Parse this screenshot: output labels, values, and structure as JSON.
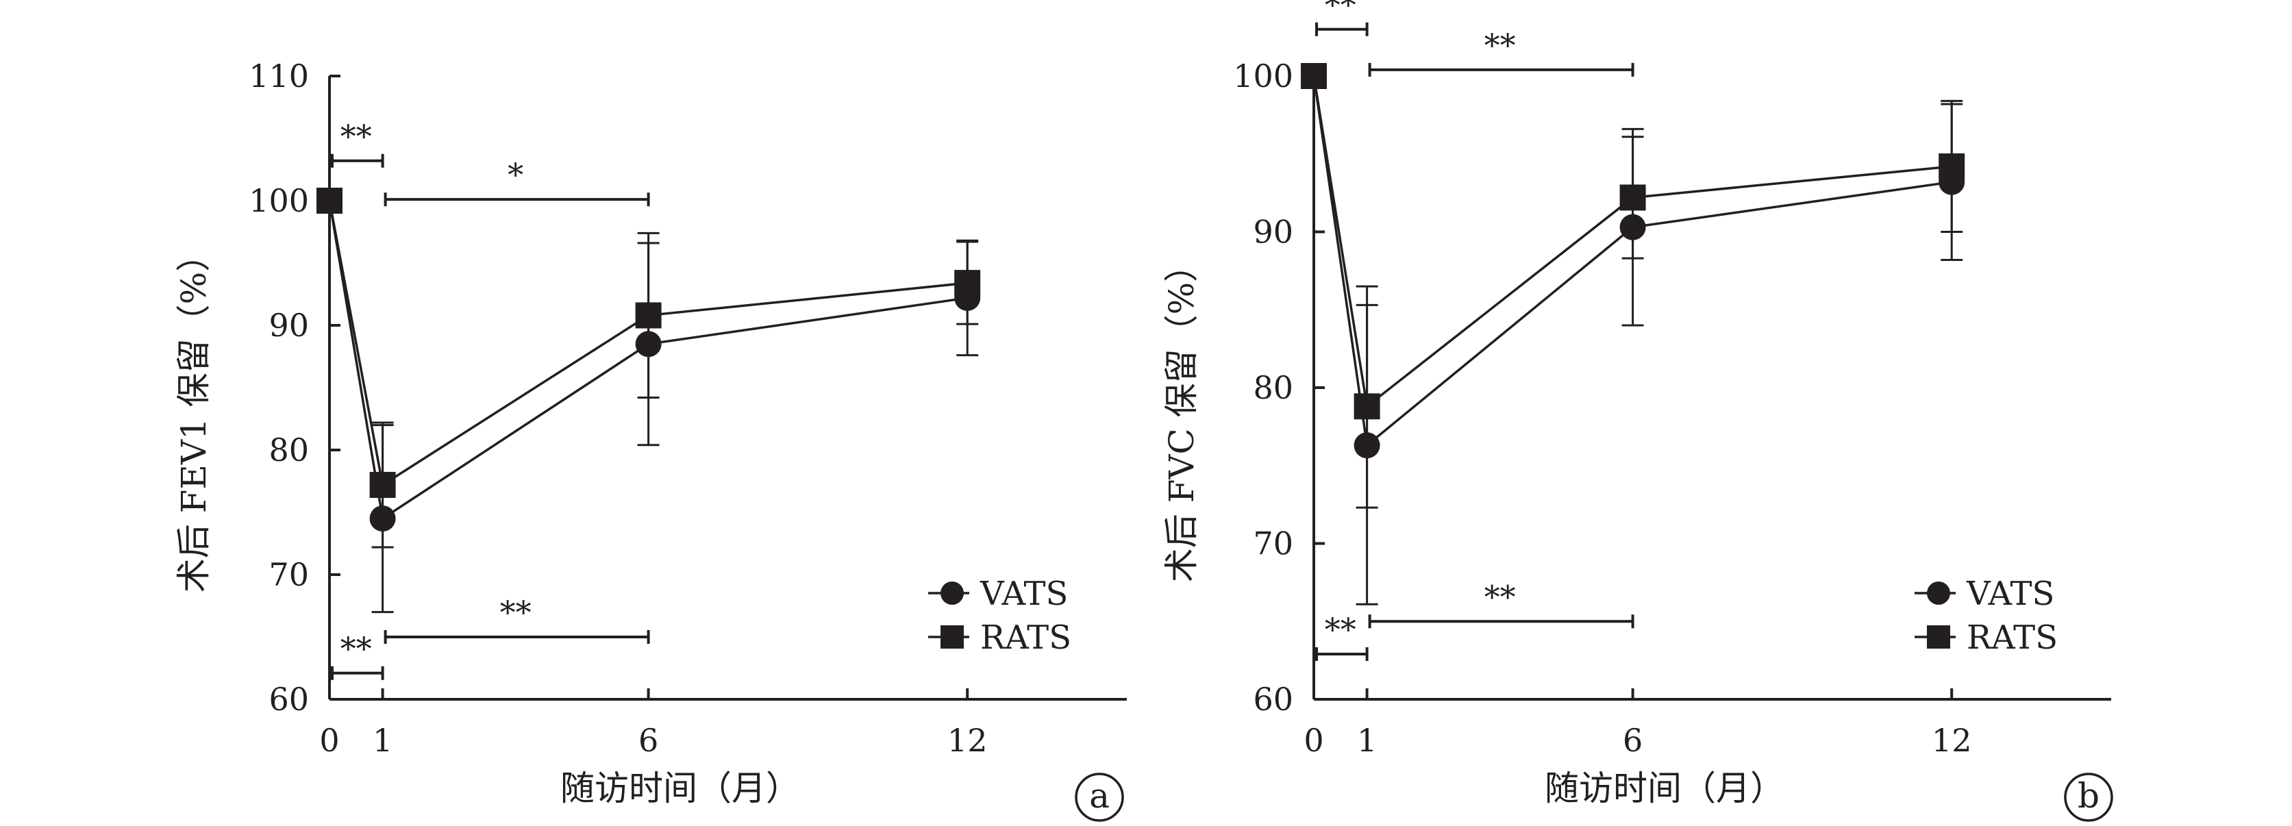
{
  "chart_data": [
    {
      "type": "line",
      "panel_label": "a",
      "ylabel": "术后 FEV1 保留（%）",
      "xlabel": "随访时间（月）",
      "ylim": [
        60,
        110
      ],
      "yticks": [
        60,
        70,
        80,
        90,
        100,
        110
      ],
      "xlim": [
        0,
        15
      ],
      "xticks": [
        0,
        1,
        6,
        12
      ],
      "grid": false,
      "legend_position": "bottom-right",
      "legend": [
        "VATS",
        "RATS"
      ],
      "series": [
        {
          "name": "VATS",
          "marker": "circle",
          "x": [
            0,
            1,
            6,
            12
          ],
          "y": [
            100,
            74.5,
            88.5,
            92.2
          ],
          "err": [
            0,
            7.5,
            8.1,
            4.6
          ]
        },
        {
          "name": "RATS",
          "marker": "square",
          "x": [
            0,
            1,
            6,
            12
          ],
          "y": [
            100,
            77.2,
            90.8,
            93.4
          ],
          "err": [
            0,
            5.0,
            6.6,
            3.3
          ]
        }
      ],
      "significance": [
        {
          "label": "**",
          "x1": 0,
          "x2": 1,
          "y": 103.2
        },
        {
          "label": "*",
          "x1": 1,
          "x2": 6,
          "y": 100.1
        },
        {
          "label": "**",
          "x1": 1,
          "x2": 6,
          "y": 65.0
        },
        {
          "label": "**",
          "x1": 0,
          "x2": 1,
          "y": 62.1
        }
      ]
    },
    {
      "type": "line",
      "panel_label": "b",
      "ylabel": "术后 FVC 保留（%）",
      "xlabel": "随访时间（月）",
      "ylim": [
        60,
        100
      ],
      "yticks": [
        60,
        70,
        80,
        90,
        100
      ],
      "xlim": [
        0,
        15
      ],
      "xticks": [
        0,
        1,
        6,
        12
      ],
      "grid": false,
      "legend_position": "bottom-right",
      "legend": [
        "VATS",
        "RATS"
      ],
      "series": [
        {
          "name": "VATS",
          "marker": "circle",
          "x": [
            0,
            1,
            6,
            12
          ],
          "y": [
            100,
            76.3,
            90.3,
            93.2
          ],
          "err": [
            0,
            10.2,
            6.3,
            5.0
          ]
        },
        {
          "name": "RATS",
          "marker": "square",
          "x": [
            0,
            1,
            6,
            12
          ],
          "y": [
            100,
            78.8,
            92.2,
            94.2
          ],
          "err": [
            0,
            6.5,
            3.9,
            4.2
          ]
        }
      ],
      "significance": [
        {
          "label": "**",
          "x1": 0,
          "x2": 1,
          "y": 103.0
        },
        {
          "label": "**",
          "x1": 1,
          "x2": 6,
          "y": 100.4
        },
        {
          "label": "**",
          "x1": 1,
          "x2": 6,
          "y": 65.0
        },
        {
          "label": "**",
          "x1": 0,
          "x2": 1,
          "y": 62.9
        }
      ]
    }
  ]
}
